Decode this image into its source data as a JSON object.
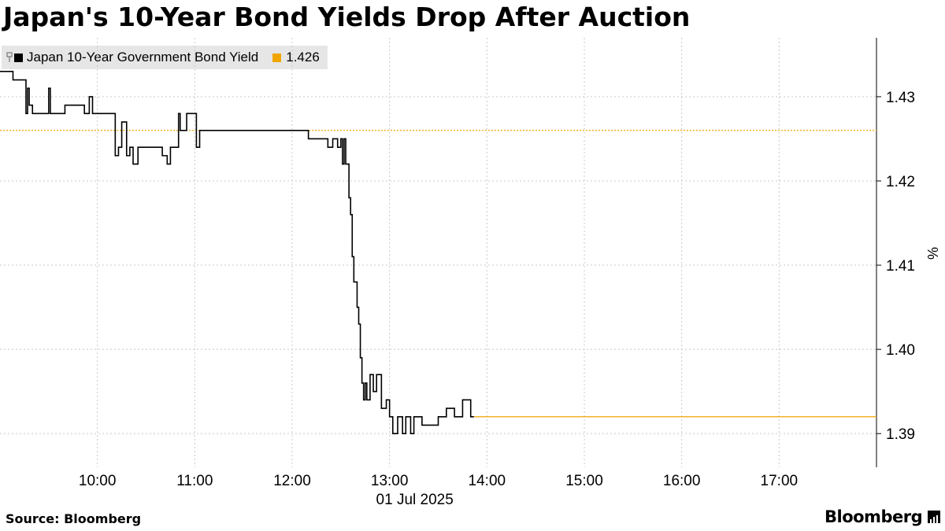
{
  "header": {
    "title": "Japan's 10-Year Bond Yields Drop After Auction"
  },
  "legend": {
    "series_label": "Japan 10-Year Government Bond Yield",
    "last_value_label": "1.426"
  },
  "footer": {
    "source": "Source: Bloomberg",
    "brand": "Bloomberg"
  },
  "colors": {
    "series": "#000000",
    "reference": "#f0a500",
    "grid": "#c8c8c8",
    "legend_bg": "#e6e6e6"
  },
  "chart_data": {
    "type": "line",
    "title": "Japan's 10-Year Bond Yields Drop After Auction",
    "xlabel": "01 Jul 2025",
    "ylabel": "%",
    "x_range": [
      "09:00",
      "18:00"
    ],
    "ylim": [
      1.386,
      1.437
    ],
    "x_ticks": [
      "10:00",
      "11:00",
      "12:00",
      "13:00",
      "14:00",
      "15:00",
      "16:00",
      "17:00"
    ],
    "y_ticks": [
      "1.39",
      "1.40",
      "1.41",
      "1.42",
      "1.43"
    ],
    "grid": true,
    "legend_position": "top-left",
    "reference_line": {
      "value": 1.426,
      "label": "1.426"
    },
    "series": [
      {
        "name": "Japan 10-Year Government Bond Yield",
        "x": [
          "09:00",
          "09:07",
          "09:08",
          "09:15",
          "09:16",
          "09:17",
          "09:18",
          "09:20",
          "09:30",
          "09:31",
          "09:40",
          "09:50",
          "09:52",
          "09:55",
          "09:57",
          "10:00",
          "10:10",
          "10:11",
          "10:13",
          "10:15",
          "10:18",
          "10:20",
          "10:22",
          "10:25",
          "10:30",
          "10:40",
          "10:43",
          "10:45",
          "10:47",
          "10:50",
          "10:51",
          "10:55",
          "11:00",
          "11:01",
          "11:03",
          "12:00",
          "12:05",
          "12:10",
          "12:20",
          "12:22",
          "12:25",
          "12:28",
          "12:30",
          "12:31",
          "12:32",
          "12:33",
          "12:35",
          "12:36",
          "12:37",
          "12:38",
          "12:40",
          "12:41",
          "12:42",
          "12:43",
          "12:44",
          "12:45",
          "12:46",
          "12:48",
          "12:50",
          "12:52",
          "12:55",
          "12:58",
          "13:00",
          "13:02",
          "13:05",
          "13:08",
          "13:10",
          "13:13",
          "13:15",
          "13:20",
          "13:25",
          "13:30",
          "13:35",
          "13:40",
          "13:45",
          "13:50",
          "13:52",
          "18:00"
        ],
        "y": [
          1.433,
          1.433,
          1.432,
          1.432,
          1.428,
          1.431,
          1.429,
          1.428,
          1.431,
          1.428,
          1.429,
          1.429,
          1.428,
          1.43,
          1.428,
          1.428,
          1.428,
          1.423,
          1.424,
          1.427,
          1.423,
          1.424,
          1.422,
          1.424,
          1.424,
          1.423,
          1.422,
          1.424,
          1.424,
          1.428,
          1.426,
          1.428,
          1.428,
          1.424,
          1.426,
          1.426,
          1.426,
          1.425,
          1.425,
          1.424,
          1.425,
          1.424,
          1.425,
          1.422,
          1.425,
          1.422,
          1.418,
          1.416,
          1.411,
          1.408,
          1.405,
          1.403,
          1.399,
          1.396,
          1.394,
          1.396,
          1.394,
          1.397,
          1.395,
          1.397,
          1.393,
          1.394,
          1.392,
          1.39,
          1.392,
          1.39,
          1.392,
          1.39,
          1.392,
          1.391,
          1.391,
          1.392,
          1.393,
          1.392,
          1.394,
          1.392,
          1.392,
          1.392
        ]
      }
    ]
  }
}
